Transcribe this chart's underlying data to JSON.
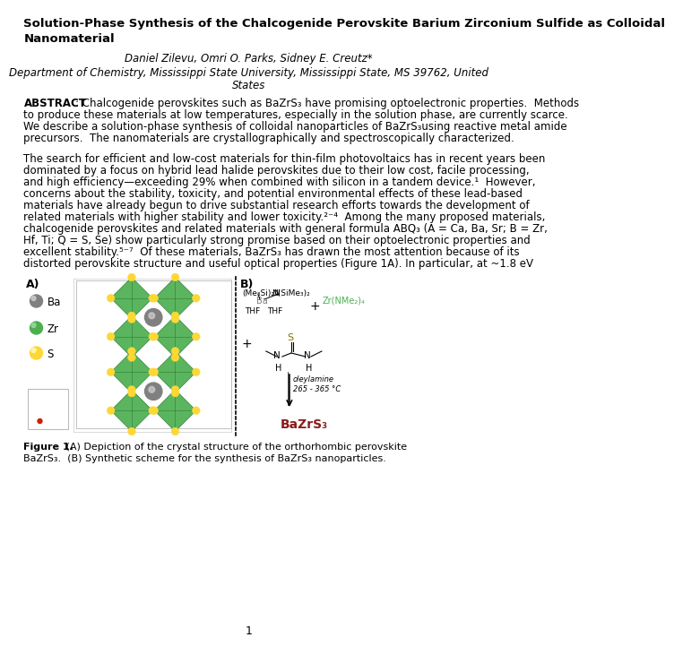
{
  "title_line1": "Solution-Phase Synthesis of the Chalcogenide Perovskite Barium Zirconium Sulfide as Colloidal",
  "title_line2": "Nanomaterial",
  "authors": "Daniel Zilevu, Omri O. Parks, Sidney E. Creutz*",
  "affiliation_line1": "Department of Chemistry, Mississippi State University, Mississippi State, MS 39762, United",
  "affiliation_line2": "States",
  "abstract_lines": [
    ": Chalcogenide perovskites such as BaZrS₃ have promising optoelectronic properties.  Methods",
    "to produce these materials at low temperatures, especially in the solution phase, are currently scarce.",
    "We describe a solution-phase synthesis of colloidal nanoparticles of BaZrS₃using reactive metal amide",
    "precursors.  The nanomaterials are crystallographically and spectroscopically characterized."
  ],
  "paragraph1_lines": [
    "The search for efficient and low-cost materials for thin-film photovoltaics has in recent years been",
    "dominated by a focus on hybrid lead halide perovskites due to their low cost, facile processing,",
    "and high efficiency—exceeding 29% when combined with silicon in a tandem device.¹  However,",
    "concerns about the stability, toxicity, and potential environmental effects of these lead-based",
    "materials have already begun to drive substantial research efforts towards the development of",
    "related materials with higher stability and lower toxicity.²⁻⁴  Among the many proposed materials,",
    "chalcogenide perovskites and related materials with general formula ABQ₃ (A = Ca, Ba, Sr; B = Zr,",
    "Hf, Ti; Q = S, Se) show particularly strong promise based on their optoelectronic properties and",
    "excellent stability.⁵⁻⁷  Of these materials, BaZrS₃ has drawn the most attention because of its",
    "distorted perovskite structure and useful optical properties (Figure 1A). In particular, at ~1.8 eV"
  ],
  "fig_caption_bold": "Figure 1.",
  "fig_caption_rest": " (A) Depiction of the crystal structure of the orthorhombic perovskite",
  "fig_caption_line2": "BaZrS₃.  (B) Synthetic scheme for the synthesis of BaZrS₃ nanoparticles.",
  "page_number": "1",
  "ba_color": "#808080",
  "zr_color": "#4caf50",
  "s_color": "#fdd835",
  "oct_fill": "#4caf50",
  "oct_edge": "#2e7d32",
  "bazrs3_color": "#8b1a1a",
  "zr_reagent_color": "#4caf50",
  "background_color": "#ffffff"
}
